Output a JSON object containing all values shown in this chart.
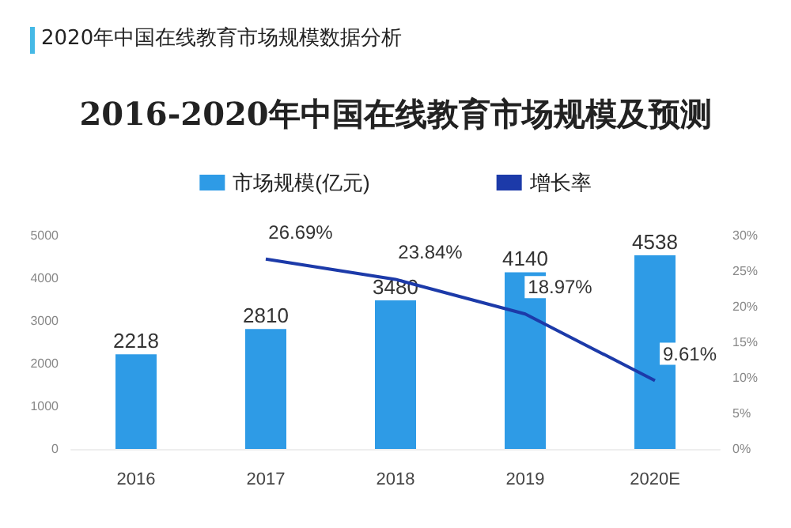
{
  "chart_data": {
    "type": "bar",
    "subtitle": "2020年中国在线教育市场规模数据分析",
    "title": "2016-2020年中国在线教育市场规模及预测",
    "categories": [
      "2016",
      "2017",
      "2018",
      "2019",
      "2020E"
    ],
    "series": [
      {
        "name": "市场规模(亿元)",
        "color": "#2e9be6",
        "values": [
          2218,
          2810,
          3480,
          4140,
          4538
        ],
        "data_labels": true
      },
      {
        "type": "line",
        "name": "增长率",
        "color": "#1c3aa9",
        "axis": "y2",
        "values": [
          null,
          26.69,
          23.84,
          18.97,
          9.61
        ],
        "value_labels": [
          null,
          "26.69%",
          "23.84%",
          "18.97%",
          "9.61%"
        ]
      }
    ],
    "ylim": [
      0,
      5000
    ],
    "yticks": [
      0,
      1000,
      2000,
      3000,
      4000,
      5000
    ],
    "y2lim": [
      0,
      30
    ],
    "y2ticks": [
      {
        "value": 0,
        "label": "0%"
      },
      {
        "value": 5,
        "label": "5%"
      },
      {
        "value": 10,
        "label": "10%"
      },
      {
        "value": 15,
        "label": "15%"
      },
      {
        "value": 20,
        "label": "20%"
      },
      {
        "value": 25,
        "label": "25%"
      },
      {
        "value": 30,
        "label": "30%"
      }
    ],
    "legend": "top",
    "grid": false,
    "marker": "none"
  }
}
